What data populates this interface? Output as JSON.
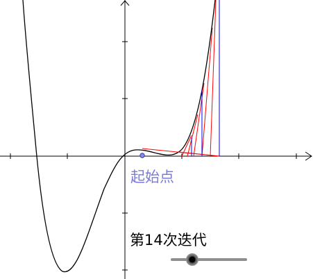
{
  "labels": {
    "start_point": "起始点",
    "iteration": "第14次迭代"
  },
  "slider": {
    "name": "iteration-slider",
    "value": 14,
    "fraction": 0.25
  },
  "colors": {
    "curve": "#000000",
    "tangent_lines": "#ff0000",
    "vertical_lines": "#0000ff",
    "start_point": "#7b7bdc",
    "axes": "#000000"
  },
  "icons": {
    "point": "start-point-marker",
    "slider_thumb": "slider-knob"
  }
}
